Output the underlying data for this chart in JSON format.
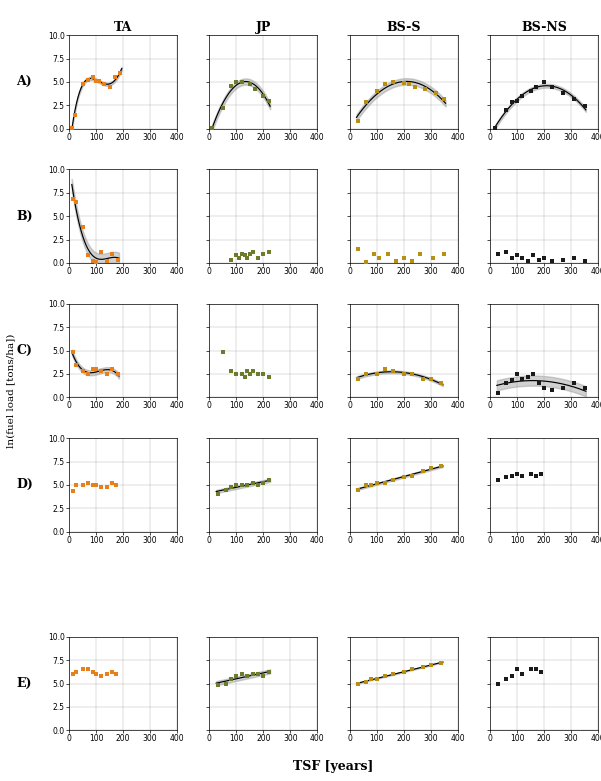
{
  "col_labels": [
    "TA",
    "JP",
    "BS-S",
    "BS-NS"
  ],
  "row_labels": [
    "A)",
    "B)",
    "C)",
    "D)",
    "E)"
  ],
  "ylabel": "ln(fuel load [tons/ha])",
  "xlabel": "TSF [years]",
  "ylim": [
    0.0,
    10.0
  ],
  "yticks": [
    0.0,
    2.5,
    5.0,
    7.5,
    10.0
  ],
  "xlim": [
    0,
    400
  ],
  "xticks": [
    0,
    100,
    200,
    300,
    400
  ],
  "colors": {
    "TA": "#E8801A",
    "JP": "#6B7C2A",
    "BS-S": "#B89010",
    "BS-NS": "#1A1A1A"
  },
  "scatter": {
    "A": {
      "TA": {
        "x": [
          10,
          20,
          50,
          70,
          90,
          100,
          110,
          130,
          150,
          170,
          190
        ],
        "y": [
          0.05,
          1.5,
          4.8,
          5.2,
          5.5,
          5.1,
          5.1,
          4.8,
          4.5,
          5.5,
          6.0
        ]
      },
      "JP": {
        "x": [
          10,
          50,
          80,
          100,
          120,
          150,
          170,
          200,
          220
        ],
        "y": [
          0.1,
          2.2,
          4.6,
          5.0,
          5.0,
          4.8,
          4.2,
          3.5,
          3.0
        ]
      },
      "BS-S": {
        "x": [
          30,
          60,
          100,
          130,
          160,
          200,
          220,
          240,
          280,
          320,
          350
        ],
        "y": [
          0.8,
          2.8,
          4.0,
          4.8,
          5.0,
          4.9,
          4.8,
          4.5,
          4.2,
          3.8,
          3.2
        ]
      },
      "BS-NS": {
        "x": [
          20,
          60,
          80,
          100,
          120,
          150,
          170,
          200,
          230,
          270,
          310,
          350
        ],
        "y": [
          0.1,
          2.0,
          2.8,
          3.0,
          3.5,
          4.0,
          4.5,
          5.0,
          4.5,
          3.8,
          3.2,
          2.4
        ]
      }
    },
    "B": {
      "TA": {
        "x": [
          15,
          25,
          50,
          70,
          90,
          100,
          120,
          140,
          160,
          180
        ],
        "y": [
          6.8,
          6.5,
          3.8,
          0.8,
          0.2,
          0.15,
          1.2,
          0.2,
          1.0,
          0.3
        ]
      },
      "JP": {
        "x": [
          80,
          100,
          110,
          120,
          130,
          140,
          150,
          160,
          180,
          200,
          220
        ],
        "y": [
          0.3,
          0.8,
          0.5,
          1.0,
          0.9,
          0.5,
          1.0,
          1.2,
          0.5,
          1.0,
          1.2
        ]
      },
      "BS-S": {
        "x": [
          30,
          60,
          90,
          110,
          140,
          170,
          200,
          230,
          260,
          310,
          350
        ],
        "y": [
          1.5,
          0.1,
          1.0,
          0.5,
          1.0,
          0.2,
          0.5,
          0.2,
          1.0,
          0.5,
          1.0
        ]
      },
      "BS-NS": {
        "x": [
          30,
          60,
          80,
          100,
          120,
          140,
          160,
          180,
          200,
          230,
          270,
          310,
          350
        ],
        "y": [
          1.0,
          1.2,
          0.5,
          0.8,
          0.5,
          0.2,
          0.8,
          0.3,
          0.5,
          0.2,
          0.3,
          0.5,
          0.2
        ]
      }
    },
    "C": {
      "TA": {
        "x": [
          15,
          25,
          50,
          70,
          90,
          100,
          120,
          140,
          160,
          180
        ],
        "y": [
          4.8,
          3.5,
          2.8,
          2.5,
          3.0,
          3.0,
          2.8,
          2.5,
          3.0,
          2.5
        ]
      },
      "JP": {
        "x": [
          50,
          80,
          100,
          120,
          130,
          140,
          150,
          160,
          180,
          200,
          220
        ],
        "y": [
          4.8,
          2.8,
          2.5,
          2.5,
          2.2,
          2.8,
          2.5,
          2.8,
          2.5,
          2.5,
          2.2
        ]
      },
      "BS-S": {
        "x": [
          30,
          60,
          100,
          130,
          160,
          200,
          230,
          270,
          300,
          340
        ],
        "y": [
          2.0,
          2.5,
          2.5,
          3.0,
          2.8,
          2.5,
          2.5,
          2.0,
          2.0,
          1.5
        ]
      },
      "BS-NS": {
        "x": [
          30,
          60,
          80,
          100,
          120,
          140,
          160,
          180,
          200,
          230,
          270,
          310,
          350
        ],
        "y": [
          0.5,
          1.5,
          1.8,
          2.5,
          2.0,
          2.2,
          2.5,
          1.5,
          1.0,
          0.8,
          1.0,
          1.5,
          1.0
        ]
      }
    },
    "D": {
      "TA": {
        "x": [
          15,
          25,
          50,
          70,
          90,
          100,
          120,
          140,
          160,
          175
        ],
        "y": [
          4.3,
          5.0,
          5.0,
          5.2,
          5.0,
          5.0,
          4.8,
          4.8,
          5.2,
          5.0
        ]
      },
      "JP": {
        "x": [
          30,
          60,
          80,
          100,
          120,
          140,
          160,
          180,
          200,
          220
        ],
        "y": [
          4.0,
          4.5,
          4.8,
          5.0,
          5.0,
          5.0,
          5.2,
          5.0,
          5.2,
          5.5
        ]
      },
      "BS-S": {
        "x": [
          30,
          60,
          80,
          100,
          130,
          160,
          200,
          230,
          270,
          300,
          340
        ],
        "y": [
          4.5,
          5.0,
          5.0,
          5.2,
          5.2,
          5.5,
          5.8,
          6.0,
          6.5,
          6.8,
          7.0
        ]
      },
      "BS-NS": {
        "x": [
          30,
          60,
          80,
          100,
          120,
          150,
          170,
          190
        ],
        "y": [
          5.5,
          5.8,
          6.0,
          6.2,
          6.0,
          6.2,
          6.0,
          6.2
        ]
      }
    },
    "E": {
      "TA": {
        "x": [
          15,
          25,
          50,
          70,
          90,
          100,
          120,
          140,
          160,
          175
        ],
        "y": [
          6.0,
          6.2,
          6.5,
          6.5,
          6.2,
          6.0,
          5.8,
          6.0,
          6.2,
          6.0
        ]
      },
      "JP": {
        "x": [
          30,
          60,
          80,
          100,
          120,
          140,
          160,
          180,
          200,
          220
        ],
        "y": [
          4.8,
          5.0,
          5.5,
          5.8,
          6.0,
          5.8,
          6.0,
          6.0,
          5.8,
          6.2
        ]
      },
      "BS-S": {
        "x": [
          30,
          60,
          80,
          100,
          130,
          160,
          200,
          230,
          270,
          300,
          340
        ],
        "y": [
          5.0,
          5.2,
          5.5,
          5.5,
          5.8,
          6.0,
          6.2,
          6.5,
          6.8,
          7.0,
          7.2
        ]
      },
      "BS-NS": {
        "x": [
          30,
          60,
          80,
          100,
          120,
          150,
          170,
          190
        ],
        "y": [
          5.0,
          5.5,
          5.8,
          6.5,
          6.0,
          6.5,
          6.5,
          6.2
        ]
      }
    }
  },
  "has_curve": {
    "A_TA": true,
    "A_JP": true,
    "A_BS-S": true,
    "A_BS-NS": true,
    "B_TA": true,
    "B_JP": false,
    "B_BS-S": false,
    "B_BS-NS": false,
    "C_TA": true,
    "C_JP": false,
    "C_BS-S": true,
    "C_BS-NS": true,
    "D_TA": false,
    "D_JP": true,
    "D_BS-S": true,
    "D_BS-NS": false,
    "E_TA": false,
    "E_JP": true,
    "E_BS-S": true,
    "E_BS-NS": false
  },
  "curve_degree": {
    "A_TA": 4,
    "A_JP": 2,
    "A_BS-S": 2,
    "A_BS-NS": 2,
    "B_TA": 3,
    "C_TA": 3,
    "C_BS-S": 2,
    "C_BS-NS": 2,
    "D_JP": 1,
    "D_BS-S": 1,
    "E_JP": 1,
    "E_BS-S": 1
  }
}
